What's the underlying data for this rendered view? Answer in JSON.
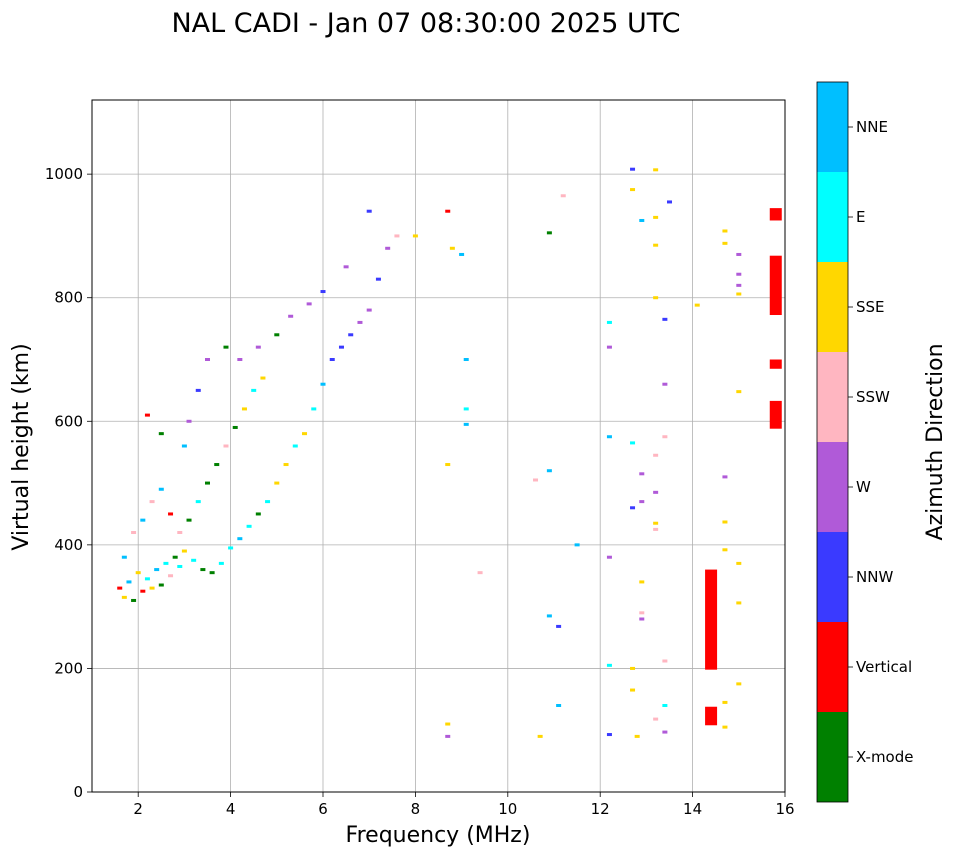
{
  "chart_data": {
    "type": "scatter",
    "title": "NAL CADI - Jan 07 08:30:00 2025 UTC",
    "xlabel": "Frequency (MHz)",
    "ylabel": "Virtual height (km)",
    "xlim": [
      1,
      16
    ],
    "ylim": [
      0,
      1120
    ],
    "xticks": [
      "2",
      "4",
      "6",
      "8",
      "10",
      "12",
      "14",
      "16"
    ],
    "yticks": [
      "0",
      "200",
      "400",
      "600",
      "800",
      "1000"
    ],
    "grid": true,
    "colorbar": {
      "title": "Azimuth Direction",
      "categories": [
        {
          "label": "X-mode",
          "color": "#008000"
        },
        {
          "label": "Vertical",
          "color": "#ff0000"
        },
        {
          "label": "NNW",
          "color": "#3a3aff"
        },
        {
          "label": "W",
          "color": "#b05ad8"
        },
        {
          "label": "SSW",
          "color": "#ffb6c1"
        },
        {
          "label": "SSE",
          "color": "#ffd700"
        },
        {
          "label": "E",
          "color": "#00ffff"
        },
        {
          "label": "NNE",
          "color": "#00bfff"
        }
      ]
    },
    "points": [
      [
        1.6,
        330,
        "Vertical"
      ],
      [
        1.7,
        315,
        "SSE"
      ],
      [
        1.8,
        340,
        "NNE"
      ],
      [
        1.9,
        310,
        "X-mode"
      ],
      [
        2.0,
        355,
        "SSE"
      ],
      [
        2.1,
        325,
        "Vertical"
      ],
      [
        2.2,
        345,
        "E"
      ],
      [
        2.3,
        330,
        "SSE"
      ],
      [
        2.4,
        360,
        "NNE"
      ],
      [
        2.5,
        335,
        "X-mode"
      ],
      [
        2.6,
        370,
        "E"
      ],
      [
        2.7,
        350,
        "SSW"
      ],
      [
        2.8,
        380,
        "X-mode"
      ],
      [
        2.9,
        365,
        "E"
      ],
      [
        3.0,
        390,
        "SSE"
      ],
      [
        3.2,
        375,
        "E"
      ],
      [
        3.4,
        360,
        "X-mode"
      ],
      [
        3.6,
        355,
        "X-mode"
      ],
      [
        3.8,
        370,
        "E"
      ],
      [
        4.0,
        395,
        "E"
      ],
      [
        4.2,
        410,
        "NNE"
      ],
      [
        4.4,
        430,
        "E"
      ],
      [
        4.6,
        450,
        "X-mode"
      ],
      [
        4.8,
        470,
        "E"
      ],
      [
        5.0,
        500,
        "SSE"
      ],
      [
        5.2,
        530,
        "SSE"
      ],
      [
        5.4,
        560,
        "E"
      ],
      [
        5.6,
        580,
        "SSE"
      ],
      [
        5.8,
        620,
        "E"
      ],
      [
        6.0,
        660,
        "NNE"
      ],
      [
        6.2,
        700,
        "NNW"
      ],
      [
        6.4,
        720,
        "NNW"
      ],
      [
        6.6,
        740,
        "NNW"
      ],
      [
        6.8,
        760,
        "W"
      ],
      [
        7.0,
        780,
        "W"
      ],
      [
        7.2,
        830,
        "NNW"
      ],
      [
        7.4,
        880,
        "W"
      ],
      [
        7.6,
        900,
        "SSW"
      ],
      [
        1.7,
        380,
        "NNE"
      ],
      [
        1.9,
        420,
        "SSW"
      ],
      [
        2.1,
        440,
        "NNE"
      ],
      [
        2.3,
        470,
        "SSW"
      ],
      [
        2.5,
        490,
        "NNE"
      ],
      [
        2.7,
        450,
        "Vertical"
      ],
      [
        2.9,
        420,
        "SSW"
      ],
      [
        3.1,
        440,
        "X-mode"
      ],
      [
        3.3,
        470,
        "E"
      ],
      [
        3.5,
        500,
        "X-mode"
      ],
      [
        3.7,
        530,
        "X-mode"
      ],
      [
        3.9,
        560,
        "SSW"
      ],
      [
        4.1,
        590,
        "X-mode"
      ],
      [
        4.3,
        620,
        "SSE"
      ],
      [
        4.5,
        650,
        "E"
      ],
      [
        4.7,
        670,
        "SSE"
      ],
      [
        3.1,
        600,
        "W"
      ],
      [
        3.3,
        650,
        "NNW"
      ],
      [
        3.5,
        700,
        "W"
      ],
      [
        3.0,
        560,
        "NNE"
      ],
      [
        2.2,
        610,
        "Vertical"
      ],
      [
        2.5,
        580,
        "X-mode"
      ],
      [
        3.9,
        720,
        "X-mode"
      ],
      [
        4.2,
        700,
        "W"
      ],
      [
        4.6,
        720,
        "W"
      ],
      [
        5.0,
        740,
        "X-mode"
      ],
      [
        5.3,
        770,
        "W"
      ],
      [
        5.7,
        790,
        "W"
      ],
      [
        6.0,
        810,
        "NNW"
      ],
      [
        6.5,
        850,
        "W"
      ],
      [
        7.0,
        940,
        "NNW"
      ],
      [
        8.0,
        900,
        "SSE"
      ],
      [
        8.7,
        940,
        "Vertical"
      ],
      [
        8.8,
        880,
        "SSE"
      ],
      [
        9.0,
        870,
        "NNE"
      ],
      [
        9.1,
        700,
        "NNE"
      ],
      [
        9.1,
        620,
        "E"
      ],
      [
        9.1,
        595,
        "NNE"
      ],
      [
        8.7,
        530,
        "SSE"
      ],
      [
        9.4,
        355,
        "SSW"
      ],
      [
        10.6,
        505,
        "SSW"
      ],
      [
        10.9,
        520,
        "NNE"
      ],
      [
        10.9,
        905,
        "X-mode"
      ],
      [
        11.2,
        965,
        "SSW"
      ],
      [
        11.5,
        400,
        "NNE"
      ],
      [
        10.9,
        285,
        "NNE"
      ],
      [
        11.1,
        268,
        "NNW"
      ],
      [
        10.7,
        90,
        "SSE"
      ],
      [
        11.1,
        140,
        "NNE"
      ],
      [
        8.7,
        110,
        "SSE"
      ],
      [
        8.7,
        90,
        "W"
      ],
      [
        12.2,
        575,
        "NNE"
      ],
      [
        12.2,
        380,
        "W"
      ],
      [
        12.2,
        205,
        "E"
      ],
      [
        12.2,
        93,
        "NNW"
      ],
      [
        12.2,
        760,
        "E"
      ],
      [
        12.2,
        720,
        "W"
      ],
      [
        12.7,
        1008,
        "NNW"
      ],
      [
        12.7,
        975,
        "SSE"
      ],
      [
        12.9,
        925,
        "NNE"
      ],
      [
        13.2,
        1007,
        "SSE"
      ],
      [
        13.2,
        930,
        "SSE"
      ],
      [
        13.2,
        885,
        "SSE"
      ],
      [
        13.2,
        800,
        "SSE"
      ],
      [
        13.4,
        765,
        "NNW"
      ],
      [
        13.4,
        660,
        "W"
      ],
      [
        13.4,
        575,
        "SSW"
      ],
      [
        13.2,
        545,
        "SSW"
      ],
      [
        13.2,
        485,
        "W"
      ],
      [
        12.9,
        515,
        "W"
      ],
      [
        12.9,
        470,
        "W"
      ],
      [
        12.7,
        460,
        "NNW"
      ],
      [
        12.7,
        565,
        "E"
      ],
      [
        13.2,
        435,
        "SSE"
      ],
      [
        13.2,
        425,
        "SSW"
      ],
      [
        12.9,
        340,
        "SSE"
      ],
      [
        12.9,
        290,
        "SSW"
      ],
      [
        12.9,
        280,
        "W"
      ],
      [
        12.7,
        200,
        "SSE"
      ],
      [
        12.7,
        165,
        "SSE"
      ],
      [
        12.8,
        90,
        "SSE"
      ],
      [
        13.2,
        118,
        "SSW"
      ],
      [
        13.4,
        212,
        "SSW"
      ],
      [
        13.4,
        140,
        "E"
      ],
      [
        13.4,
        97,
        "W"
      ],
      [
        14.1,
        788,
        "SSE"
      ],
      [
        14.7,
        908,
        "SSE"
      ],
      [
        14.7,
        888,
        "SSE"
      ],
      [
        15.0,
        870,
        "W"
      ],
      [
        15.0,
        838,
        "W"
      ],
      [
        15.0,
        820,
        "W"
      ],
      [
        15.0,
        806,
        "SSE"
      ],
      [
        15.0,
        648,
        "SSE"
      ],
      [
        14.7,
        510,
        "W"
      ],
      [
        14.7,
        437,
        "SSE"
      ],
      [
        14.7,
        392,
        "SSE"
      ],
      [
        15.0,
        370,
        "SSE"
      ],
      [
        15.0,
        306,
        "SSE"
      ],
      [
        15.0,
        175,
        "SSE"
      ],
      [
        14.7,
        145,
        "SSE"
      ],
      [
        14.7,
        105,
        "SSE"
      ],
      [
        13.5,
        955,
        "NNW"
      ]
    ],
    "bars": [
      {
        "x": 14.4,
        "y0": 198,
        "y1": 360,
        "dir": "Vertical"
      },
      {
        "x": 14.4,
        "y0": 108,
        "y1": 138,
        "dir": "Vertical"
      },
      {
        "x": 15.8,
        "y0": 925,
        "y1": 945,
        "dir": "Vertical"
      },
      {
        "x": 15.8,
        "y0": 772,
        "y1": 868,
        "dir": "Vertical"
      },
      {
        "x": 15.8,
        "y0": 685,
        "y1": 700,
        "dir": "Vertical"
      },
      {
        "x": 15.8,
        "y0": 588,
        "y1": 633,
        "dir": "Vertical"
      }
    ]
  }
}
